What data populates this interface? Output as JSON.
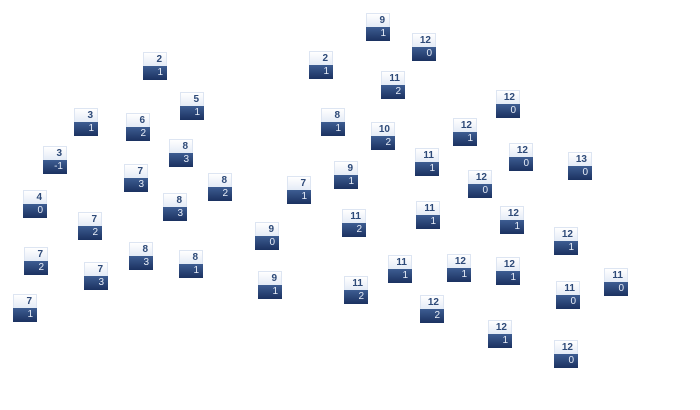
{
  "node_colors": {
    "top_bg": "#e4ebf6",
    "bottom_bg": "#1b3160",
    "top_text": "#2e4a78",
    "bottom_text": "#e8eef8"
  },
  "nodes": [
    {
      "top": "2",
      "bottom": "1"
    },
    {
      "top": "5",
      "bottom": "1"
    },
    {
      "top": "3",
      "bottom": "1"
    },
    {
      "top": "6",
      "bottom": "2"
    },
    {
      "top": "3",
      "bottom": "-1"
    },
    {
      "top": "8",
      "bottom": "3"
    },
    {
      "top": "7",
      "bottom": "3"
    },
    {
      "top": "8",
      "bottom": "2"
    },
    {
      "top": "4",
      "bottom": "0"
    },
    {
      "top": "8",
      "bottom": "3"
    },
    {
      "top": "7",
      "bottom": "2"
    },
    {
      "top": "7",
      "bottom": "2"
    },
    {
      "top": "8",
      "bottom": "3"
    },
    {
      "top": "8",
      "bottom": "1"
    },
    {
      "top": "7",
      "bottom": "3"
    },
    {
      "top": "7",
      "bottom": "1"
    },
    {
      "top": "9",
      "bottom": "1"
    },
    {
      "top": "12",
      "bottom": "0"
    },
    {
      "top": "2",
      "bottom": "1"
    },
    {
      "top": "11",
      "bottom": "2"
    },
    {
      "top": "8",
      "bottom": "1"
    },
    {
      "top": "10",
      "bottom": "2"
    },
    {
      "top": "11",
      "bottom": "1"
    },
    {
      "top": "9",
      "bottom": "1"
    },
    {
      "top": "7",
      "bottom": "1"
    },
    {
      "top": "11",
      "bottom": "1"
    },
    {
      "top": "11",
      "bottom": "2"
    },
    {
      "top": "9",
      "bottom": "0"
    },
    {
      "top": "11",
      "bottom": "1"
    },
    {
      "top": "9",
      "bottom": "1"
    },
    {
      "top": "11",
      "bottom": "2"
    },
    {
      "top": "12",
      "bottom": "0"
    },
    {
      "top": "12",
      "bottom": "1"
    },
    {
      "top": "12",
      "bottom": "0"
    },
    {
      "top": "13",
      "bottom": "0"
    },
    {
      "top": "12",
      "bottom": "0"
    },
    {
      "top": "12",
      "bottom": "1"
    },
    {
      "top": "12",
      "bottom": "1"
    },
    {
      "top": "12",
      "bottom": "1"
    },
    {
      "top": "12",
      "bottom": "1"
    },
    {
      "top": "11",
      "bottom": "0"
    },
    {
      "top": "11",
      "bottom": "0"
    },
    {
      "top": "12",
      "bottom": "2"
    },
    {
      "top": "12",
      "bottom": "1"
    },
    {
      "top": "12",
      "bottom": "0"
    }
  ]
}
